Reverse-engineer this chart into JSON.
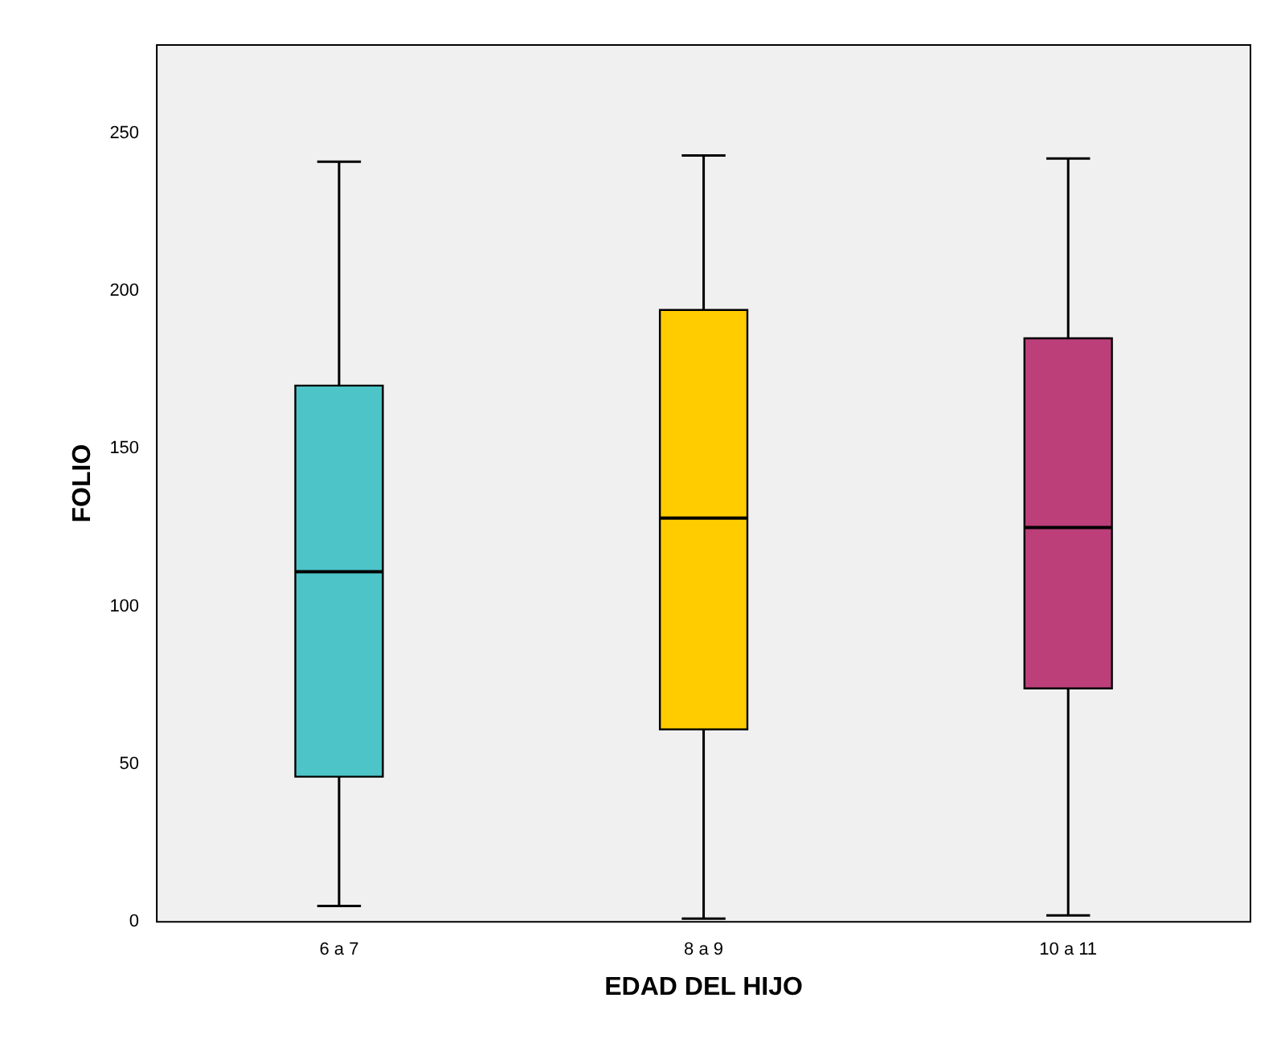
{
  "chart_data": {
    "type": "box",
    "xlabel": "EDAD DEL HIJO",
    "ylabel": "FOLIO",
    "categories": [
      "6 a 7",
      "8 a 9",
      "10 a 11"
    ],
    "colors": [
      "#4cc4c8",
      "#ffcc00",
      "#bc3f7a"
    ],
    "boxes": [
      {
        "low": 5,
        "q1": 46,
        "median": 111,
        "q3": 170,
        "high": 241
      },
      {
        "low": 1,
        "q1": 61,
        "median": 128,
        "q3": 194,
        "high": 243
      },
      {
        "low": 2,
        "q1": 74,
        "median": 125,
        "q3": 185,
        "high": 242
      }
    ],
    "ylim": [
      0,
      278
    ],
    "yticks": [
      0,
      50,
      100,
      150,
      200,
      250
    ]
  }
}
